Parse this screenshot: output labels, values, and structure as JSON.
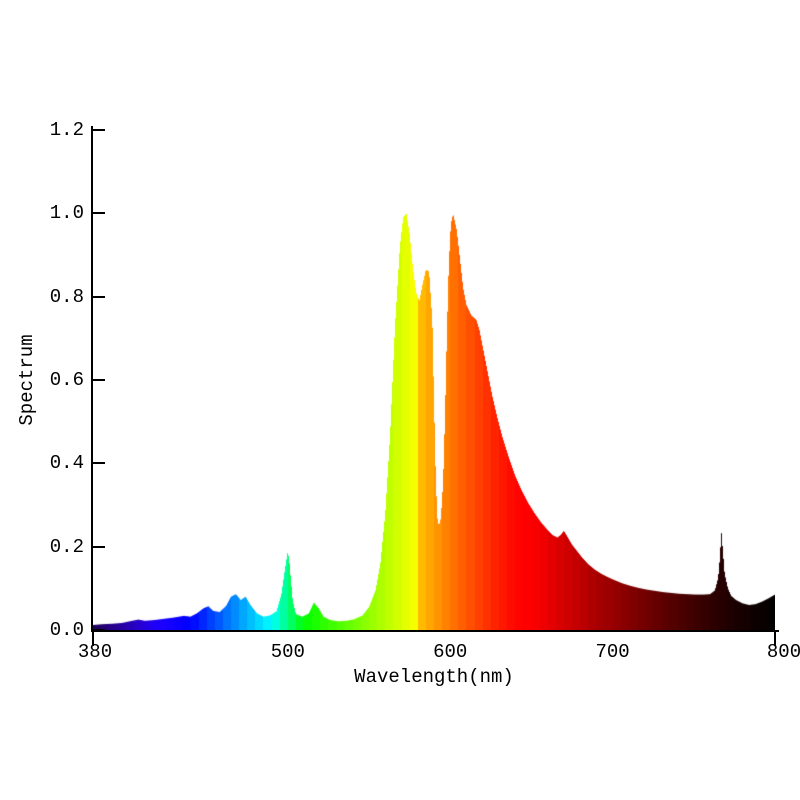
{
  "chart": {
    "background": "#ffffff",
    "axis_color": "#000000",
    "text_color": "#000000",
    "y_ticks": [
      {
        "value": 0.0,
        "label": "0.0"
      },
      {
        "value": 0.2,
        "label": "0.2"
      },
      {
        "value": 0.4,
        "label": "0.4"
      },
      {
        "value": 0.6,
        "label": "0.6"
      },
      {
        "value": 0.8,
        "label": "0.8"
      },
      {
        "value": 1.0,
        "label": "1.0"
      },
      {
        "value": 1.2,
        "label": "1.2"
      }
    ],
    "x_ticks": [
      {
        "value": 380,
        "label": "380",
        "mark": true,
        "dx": 2
      },
      {
        "value": 500,
        "label": "500",
        "mark": false,
        "dx": 0
      },
      {
        "value": 600,
        "label": "600",
        "mark": false,
        "dx": 0
      },
      {
        "value": 700,
        "label": "700",
        "mark": false,
        "dx": 0
      },
      {
        "value": 800,
        "label": "800",
        "mark": true,
        "dx": 9
      }
    ]
  },
  "chart_data": {
    "type": "area",
    "title": "",
    "xlabel": "Wavelength(nm)",
    "ylabel": "Spectrum",
    "xlim": [
      380,
      800
    ],
    "ylim": [
      0,
      1.2
    ],
    "grid": false,
    "legend": null,
    "fill": "visible-spectrum-wavelength-colors",
    "color_band_nm": 5,
    "x": [
      380,
      386,
      392,
      398,
      404,
      408,
      412,
      418,
      424,
      430,
      436,
      440,
      444,
      448,
      451,
      454,
      458,
      462,
      465,
      468,
      471,
      474,
      477,
      481,
      485,
      489,
      493,
      496,
      498,
      500,
      501,
      503,
      505,
      509,
      513,
      516,
      519,
      522,
      526,
      531,
      536,
      541,
      546,
      550,
      554,
      557,
      560,
      563,
      566,
      569,
      571,
      573,
      575,
      577,
      579,
      581,
      583,
      585,
      587,
      589,
      590,
      591,
      592,
      593,
      594,
      595,
      596,
      597,
      598,
      599,
      600,
      601,
      602,
      604,
      606,
      608,
      610,
      613,
      616,
      618,
      620,
      623,
      626,
      629,
      632,
      636,
      640,
      644,
      648,
      652,
      656,
      660,
      663,
      666,
      668,
      670,
      672,
      675,
      678,
      681,
      685,
      689,
      693,
      697,
      701,
      706,
      711,
      716,
      721,
      726,
      731,
      736,
      741,
      746,
      751,
      756,
      760,
      763,
      765,
      766,
      767,
      768,
      769,
      771,
      773,
      776,
      780,
      784,
      788,
      792,
      796,
      800
    ],
    "y": [
      0.012,
      0.014,
      0.015,
      0.017,
      0.022,
      0.025,
      0.022,
      0.024,
      0.027,
      0.03,
      0.034,
      0.032,
      0.04,
      0.052,
      0.057,
      0.046,
      0.043,
      0.058,
      0.08,
      0.086,
      0.072,
      0.08,
      0.06,
      0.04,
      0.032,
      0.035,
      0.045,
      0.085,
      0.14,
      0.19,
      0.16,
      0.07,
      0.038,
      0.032,
      0.04,
      0.066,
      0.052,
      0.032,
      0.024,
      0.021,
      0.022,
      0.026,
      0.035,
      0.055,
      0.095,
      0.16,
      0.28,
      0.47,
      0.73,
      0.92,
      0.99,
      1.0,
      0.95,
      0.87,
      0.81,
      0.79,
      0.83,
      0.865,
      0.86,
      0.74,
      0.55,
      0.38,
      0.27,
      0.25,
      0.265,
      0.31,
      0.4,
      0.55,
      0.72,
      0.86,
      0.95,
      0.99,
      0.995,
      0.96,
      0.89,
      0.82,
      0.78,
      0.755,
      0.745,
      0.72,
      0.68,
      0.62,
      0.56,
      0.51,
      0.465,
      0.415,
      0.37,
      0.335,
      0.305,
      0.28,
      0.258,
      0.24,
      0.228,
      0.222,
      0.228,
      0.238,
      0.225,
      0.205,
      0.19,
      0.175,
      0.158,
      0.145,
      0.135,
      0.127,
      0.12,
      0.112,
      0.106,
      0.101,
      0.097,
      0.094,
      0.091,
      0.089,
      0.087,
      0.086,
      0.085,
      0.085,
      0.086,
      0.095,
      0.125,
      0.17,
      0.235,
      0.185,
      0.135,
      0.1,
      0.082,
      0.072,
      0.064,
      0.06,
      0.062,
      0.068,
      0.076,
      0.085
    ]
  }
}
